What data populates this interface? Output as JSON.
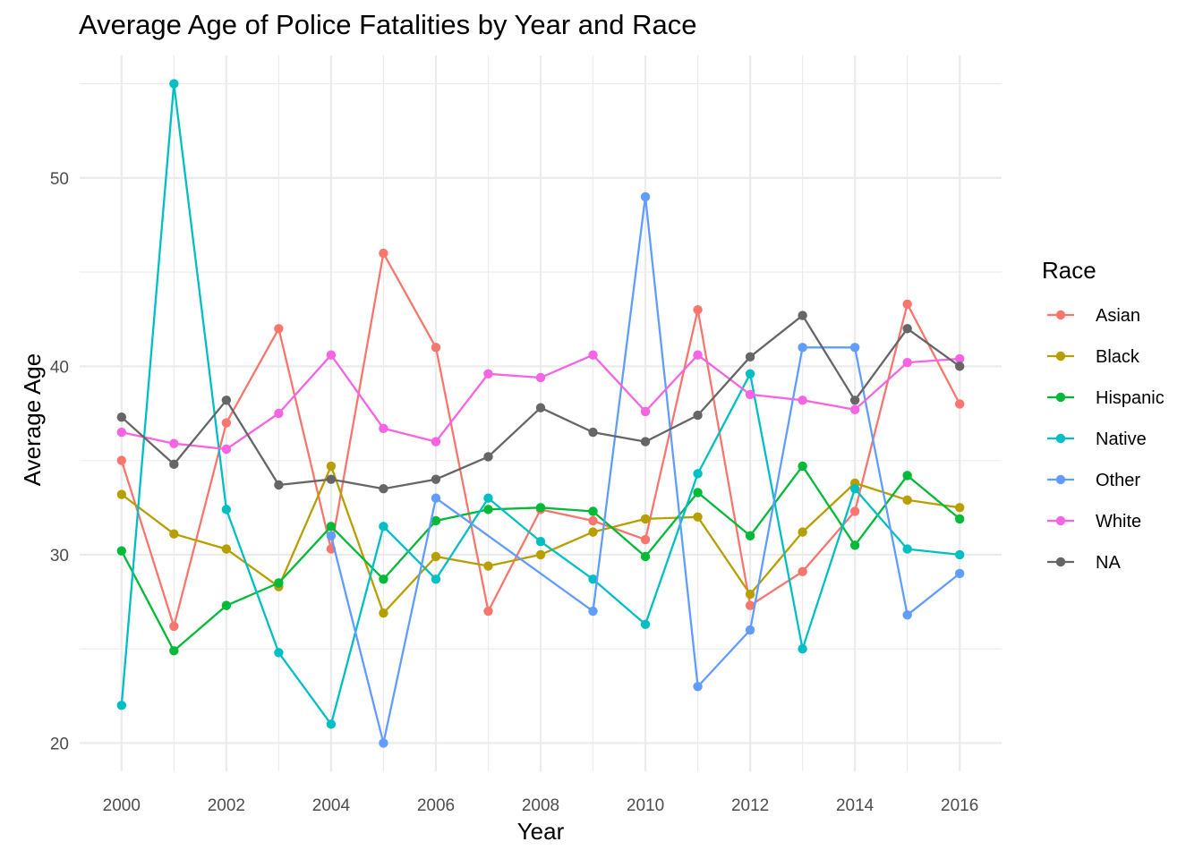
{
  "chart_data": {
    "type": "line",
    "title": "Average Age of Police Fatalities by Year and Race",
    "xlabel": "Year",
    "ylabel": "Average Age",
    "xlim": [
      1999.2,
      2016.8
    ],
    "ylim": [
      18.5,
      56.5
    ],
    "x_ticks": [
      2000,
      2002,
      2004,
      2006,
      2008,
      2010,
      2012,
      2014,
      2016
    ],
    "x_tick_labels": [
      "2000",
      "2002",
      "2004",
      "2006",
      "2008",
      "2010",
      "2012",
      "2014",
      "2016"
    ],
    "y_ticks": [
      20,
      30,
      40,
      50
    ],
    "y_tick_labels": [
      "20",
      "30",
      "40",
      "50"
    ],
    "grid": true,
    "legend": {
      "title": "Race",
      "position": "right"
    },
    "series": [
      {
        "name": "Asian",
        "color": "#F8766D",
        "points": [
          [
            2000,
            35.0
          ],
          [
            2001,
            26.2
          ],
          [
            2002,
            37.0
          ],
          [
            2003,
            42.0
          ],
          [
            2004,
            30.3
          ],
          [
            2005,
            46.0
          ],
          [
            2006,
            41.0
          ],
          [
            2007,
            27.0
          ],
          [
            2008,
            32.4
          ],
          [
            2009,
            31.8
          ],
          [
            2010,
            30.8
          ],
          [
            2011,
            43.0
          ],
          [
            2012,
            27.3
          ],
          [
            2013,
            29.1
          ],
          [
            2014,
            32.3
          ],
          [
            2015,
            43.3
          ],
          [
            2016,
            38.0
          ]
        ]
      },
      {
        "name": "Black",
        "color": "#B79F00",
        "points": [
          [
            2000,
            33.2
          ],
          [
            2001,
            31.1
          ],
          [
            2002,
            30.3
          ],
          [
            2003,
            28.3
          ],
          [
            2004,
            34.7
          ],
          [
            2005,
            26.9
          ],
          [
            2006,
            29.9
          ],
          [
            2007,
            29.4
          ],
          [
            2008,
            30.0
          ],
          [
            2009,
            31.2
          ],
          [
            2010,
            31.9
          ],
          [
            2011,
            32.0
          ],
          [
            2012,
            27.9
          ],
          [
            2013,
            31.2
          ],
          [
            2014,
            33.8
          ],
          [
            2015,
            32.9
          ],
          [
            2016,
            32.5
          ]
        ]
      },
      {
        "name": "Hispanic",
        "color": "#00BA38",
        "points": [
          [
            2000,
            30.2
          ],
          [
            2001,
            24.9
          ],
          [
            2002,
            27.3
          ],
          [
            2003,
            28.5
          ],
          [
            2004,
            31.5
          ],
          [
            2005,
            28.7
          ],
          [
            2006,
            31.8
          ],
          [
            2007,
            32.4
          ],
          [
            2008,
            32.5
          ],
          [
            2009,
            32.3
          ],
          [
            2010,
            29.9
          ],
          [
            2011,
            33.3
          ],
          [
            2012,
            31.0
          ],
          [
            2013,
            34.7
          ],
          [
            2014,
            30.5
          ],
          [
            2015,
            34.2
          ],
          [
            2016,
            31.9
          ]
        ]
      },
      {
        "name": "Native",
        "color": "#00BFC4",
        "points": [
          [
            2000,
            22.0
          ],
          [
            2001,
            55.0
          ],
          [
            2002,
            32.4
          ],
          [
            2003,
            24.8
          ],
          [
            2004,
            21.0
          ],
          [
            2005,
            31.5
          ],
          [
            2006,
            28.7
          ],
          [
            2007,
            33.0
          ],
          [
            2008,
            30.7
          ],
          [
            2009,
            28.7
          ],
          [
            2010,
            26.3
          ],
          [
            2011,
            34.3
          ],
          [
            2012,
            39.6
          ],
          [
            2013,
            25.0
          ],
          [
            2014,
            33.5
          ],
          [
            2015,
            30.3
          ],
          [
            2016,
            30.0
          ]
        ]
      },
      {
        "name": "Other",
        "color": "#619CFF",
        "points": [
          [
            2004,
            31.0
          ],
          [
            2005,
            20.0
          ],
          [
            2006,
            33.0
          ],
          [
            2009,
            27.0
          ],
          [
            2010,
            49.0
          ],
          [
            2011,
            23.0
          ],
          [
            2012,
            26.0
          ],
          [
            2013,
            41.0
          ],
          [
            2014,
            41.0
          ],
          [
            2015,
            26.8
          ],
          [
            2016,
            29.0
          ]
        ]
      },
      {
        "name": "White",
        "color": "#F564E3",
        "points": [
          [
            2000,
            36.5
          ],
          [
            2001,
            35.9
          ],
          [
            2002,
            35.6
          ],
          [
            2003,
            37.5
          ],
          [
            2004,
            40.6
          ],
          [
            2005,
            36.7
          ],
          [
            2006,
            36.0
          ],
          [
            2007,
            39.6
          ],
          [
            2008,
            39.4
          ],
          [
            2009,
            40.6
          ],
          [
            2010,
            37.6
          ],
          [
            2011,
            40.6
          ],
          [
            2012,
            38.5
          ],
          [
            2013,
            38.2
          ],
          [
            2014,
            37.7
          ],
          [
            2015,
            40.2
          ],
          [
            2016,
            40.4
          ]
        ]
      },
      {
        "name": "NA",
        "color": "#666666",
        "points": [
          [
            2000,
            37.3
          ],
          [
            2001,
            34.8
          ],
          [
            2002,
            38.2
          ],
          [
            2003,
            33.7
          ],
          [
            2004,
            34.0
          ],
          [
            2005,
            33.5
          ],
          [
            2006,
            34.0
          ],
          [
            2007,
            35.2
          ],
          [
            2008,
            37.8
          ],
          [
            2009,
            36.5
          ],
          [
            2010,
            36.0
          ],
          [
            2011,
            37.4
          ],
          [
            2012,
            40.5
          ],
          [
            2013,
            42.7
          ],
          [
            2014,
            38.2
          ],
          [
            2015,
            42.0
          ],
          [
            2016,
            40.0
          ]
        ]
      }
    ]
  }
}
